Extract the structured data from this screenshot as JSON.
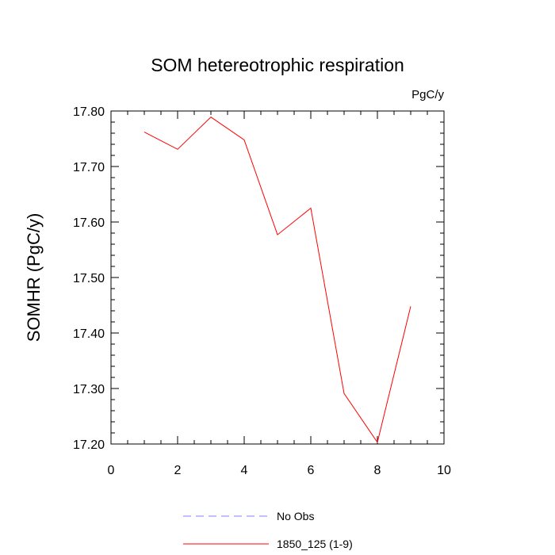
{
  "chart_data": {
    "type": "line",
    "title": "SOM hetereotrophic respiration",
    "units": "PgC/y",
    "xlabel": "",
    "ylabel": "SOMHR  (PgC/y)",
    "xlim": [
      0,
      10
    ],
    "ylim": [
      17.2,
      17.8
    ],
    "x_ticks": [
      0,
      2,
      4,
      6,
      8,
      10
    ],
    "x_tick_labels": [
      "0",
      "2",
      "4",
      "6",
      "8",
      "10"
    ],
    "y_ticks": [
      17.2,
      17.3,
      17.4,
      17.5,
      17.6,
      17.7,
      17.8
    ],
    "y_tick_labels": [
      "17.20",
      "17.30",
      "17.40",
      "17.50",
      "17.60",
      "17.70",
      "17.80"
    ],
    "series": [
      {
        "name": "1850_125 (1-9)",
        "color": "#ff0000",
        "style": "solid",
        "x": [
          1,
          2,
          3,
          4,
          5,
          6,
          7,
          8,
          9
        ],
        "values": [
          17.762,
          17.731,
          17.789,
          17.748,
          17.577,
          17.625,
          17.291,
          17.203,
          17.448
        ]
      }
    ],
    "legend": {
      "placement": "bottom-center",
      "entries": [
        {
          "label": "No Obs",
          "color": "#8080ff",
          "style": "dashed"
        },
        {
          "label": "1850_125 (1-9)",
          "color": "#ff0000",
          "style": "solid"
        }
      ]
    }
  }
}
